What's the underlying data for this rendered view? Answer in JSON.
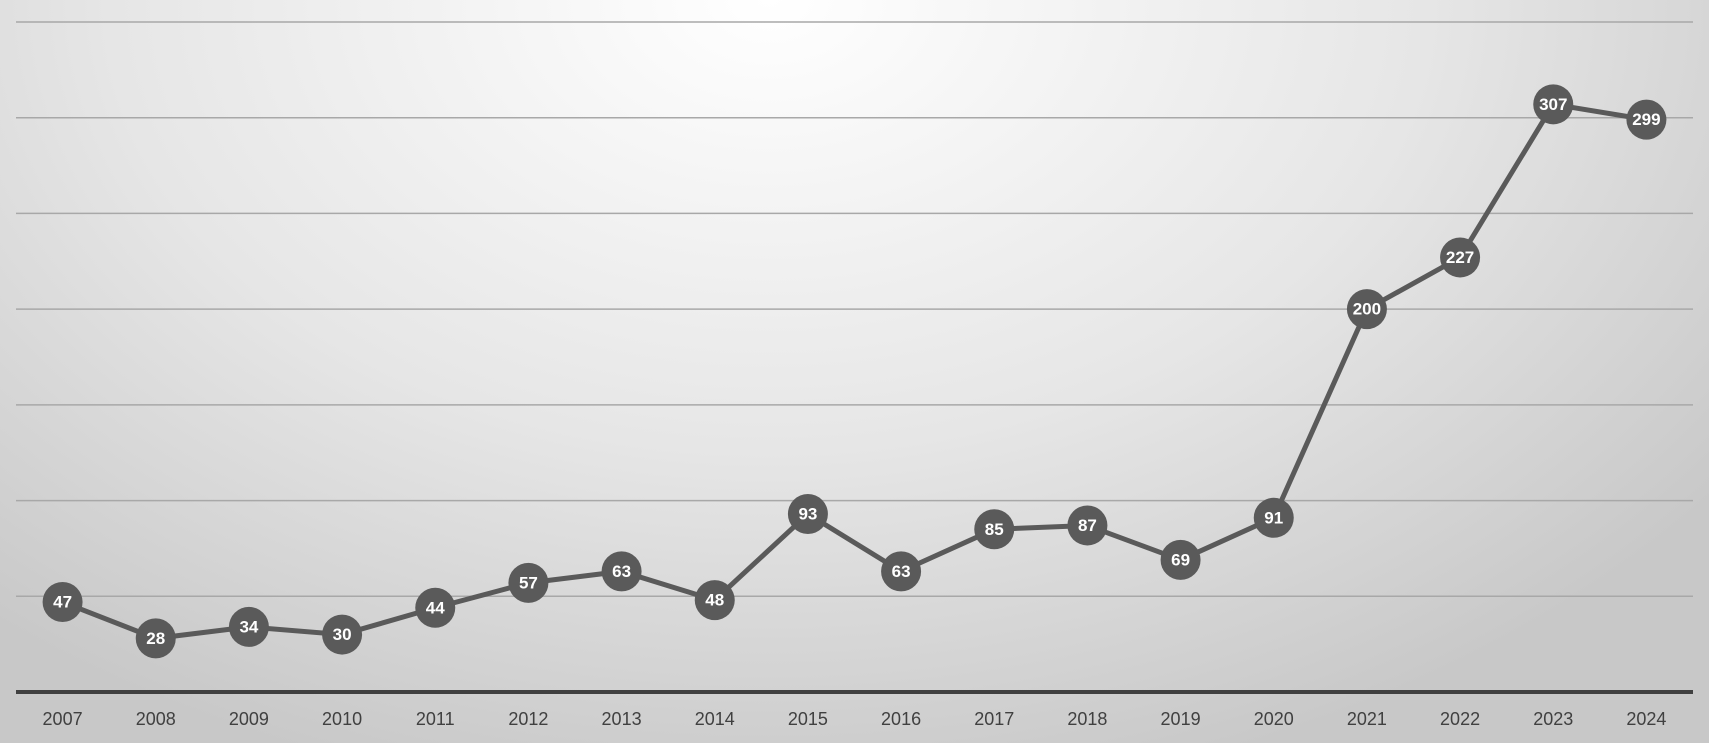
{
  "chart_data": {
    "type": "line",
    "categories": [
      "2007",
      "2008",
      "2009",
      "2010",
      "2011",
      "2012",
      "2013",
      "2014",
      "2015",
      "2016",
      "2017",
      "2018",
      "2019",
      "2020",
      "2021",
      "2022",
      "2023",
      "2024"
    ],
    "series": [
      {
        "color": "#5a5a5a",
        "values": [
          47,
          28,
          34,
          30,
          44,
          57,
          63,
          48,
          93,
          63,
          85,
          87,
          69,
          91,
          200,
          227,
          307,
          299
        ]
      }
    ],
    "ylim": [
      0,
      350
    ],
    "yticks": [
      0,
      50,
      100,
      150,
      200,
      250,
      300,
      350
    ],
    "grid": true
  }
}
